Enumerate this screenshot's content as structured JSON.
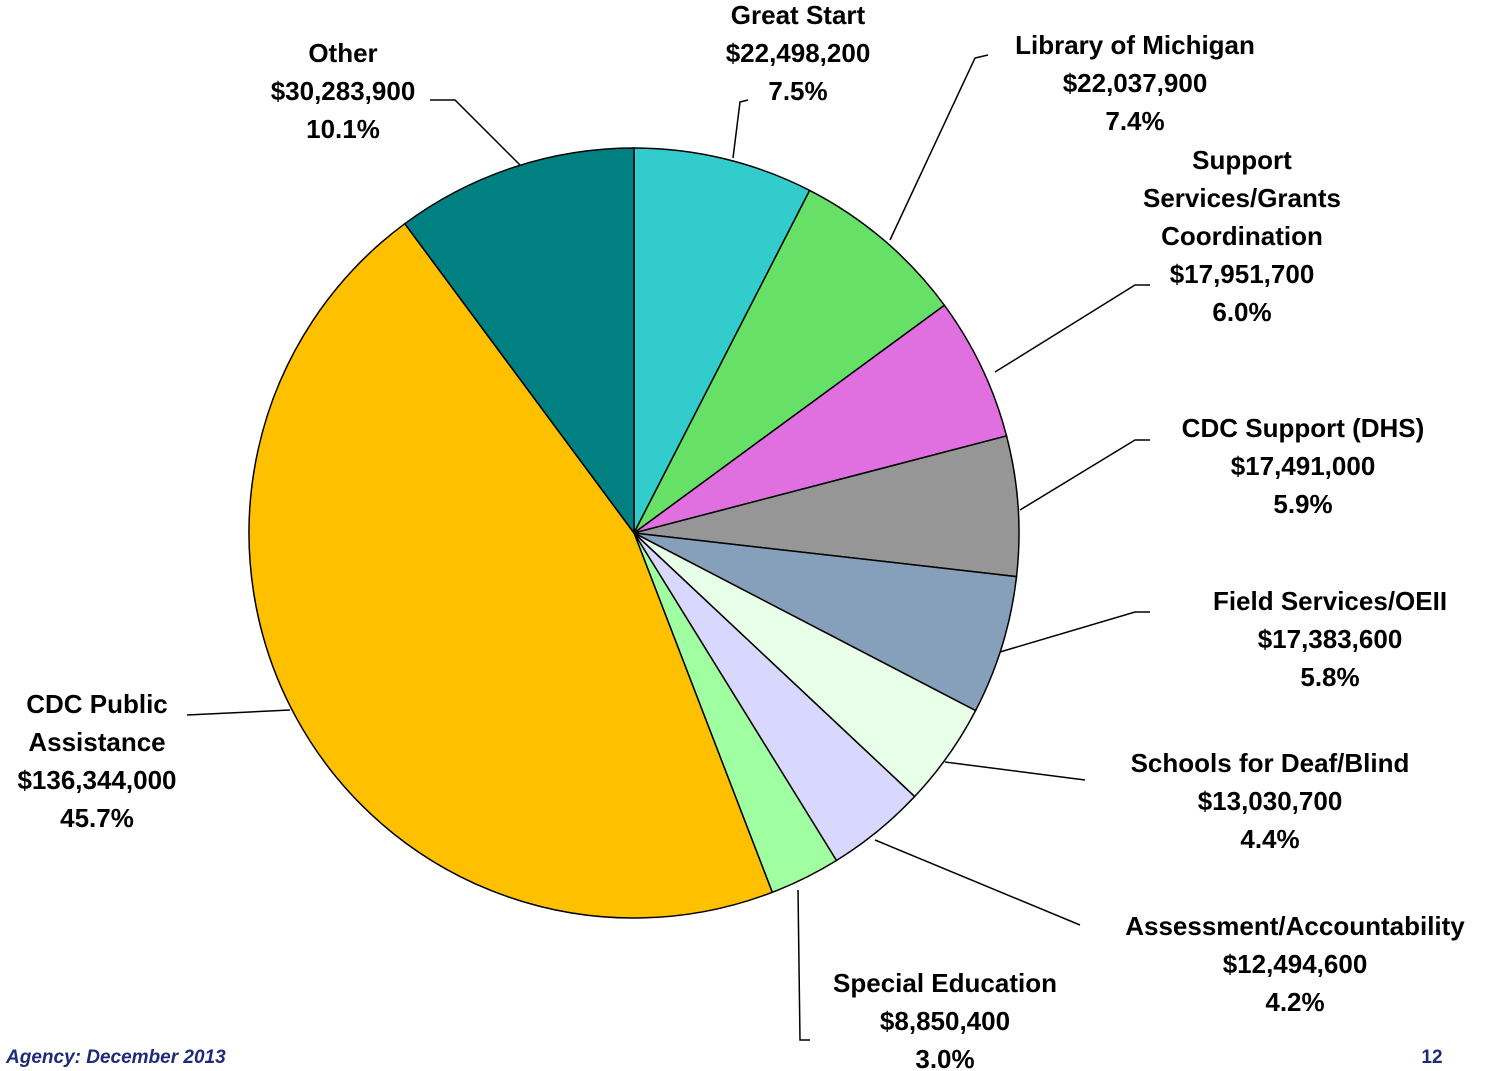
{
  "chart_data": {
    "type": "pie",
    "categories": [
      "Great Start",
      "Library of Michigan",
      "Support Services/Grants Coordination",
      "CDC Support (DHS)",
      "Field Services/OEII",
      "Schools for Deaf/Blind",
      "Assessment/Accountability",
      "Special Education",
      "CDC Public Assistance",
      "Other"
    ],
    "values": [
      22498200,
      22037900,
      17951700,
      17491000,
      17383600,
      13030700,
      12494600,
      8850400,
      136344000,
      30283900
    ],
    "value_labels": [
      "$22,498,200",
      "$22,037,900",
      "$17,951,700",
      "$17,491,000",
      "$17,383,600",
      "$13,030,700",
      "$12,494,600",
      "$8,850,400",
      "$136,344,000",
      "$30,283,900"
    ],
    "percents": [
      7.5,
      7.4,
      6.0,
      5.9,
      5.8,
      4.4,
      4.2,
      3.0,
      45.7,
      10.1
    ],
    "percent_labels": [
      "7.5%",
      "7.4%",
      "6.0%",
      "5.9%",
      "5.8%",
      "4.4%",
      "4.2%",
      "3.0%",
      "45.7%",
      "10.1%"
    ],
    "colors": [
      "#33cccc",
      "#66e066",
      "#e070e0",
      "#969696",
      "#869fbb",
      "#e8ffe8",
      "#d8d8ff",
      "#a0ffa0",
      "#ffc000",
      "#008080"
    ]
  },
  "footer": {
    "source": "Agency:  December 2013",
    "page": "12"
  }
}
